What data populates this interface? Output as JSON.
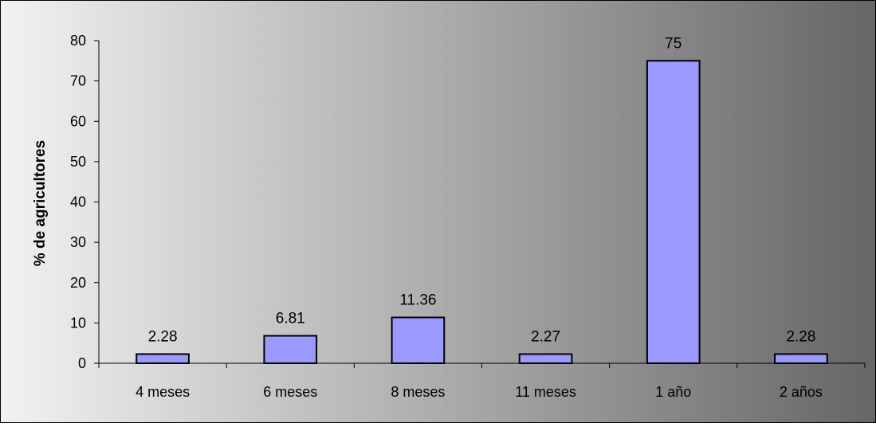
{
  "chart_data": {
    "type": "bar",
    "title": "",
    "xlabel": "",
    "ylabel": "% de agricultores",
    "categories": [
      "4 meses",
      "6 meses",
      "8 meses",
      "11 meses",
      "1 año",
      "2 años"
    ],
    "values": [
      2.28,
      6.81,
      11.36,
      2.27,
      75,
      2.28
    ],
    "data_labels": [
      "2.28",
      "6.81",
      "11.36",
      "2.27",
      "75",
      "2.28"
    ],
    "ylim": [
      0,
      80
    ],
    "yticks": [
      "0",
      "10",
      "20",
      "30",
      "40",
      "50",
      "60",
      "70",
      "80"
    ],
    "grid": false,
    "legend": "none",
    "bar_color": "#9999FF",
    "bar_edge_color": "#000000",
    "background_gradient": [
      "#F2F2F2",
      "#666666"
    ]
  }
}
